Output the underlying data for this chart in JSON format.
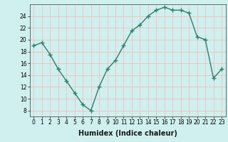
{
  "x": [
    0,
    1,
    2,
    3,
    4,
    5,
    6,
    7,
    8,
    9,
    10,
    11,
    12,
    13,
    14,
    15,
    16,
    17,
    18,
    19,
    20,
    21,
    22,
    23
  ],
  "y": [
    19,
    19.5,
    17.5,
    15,
    13,
    11,
    9,
    8,
    12,
    15,
    16.5,
    19,
    21.5,
    22.5,
    24,
    25,
    25.5,
    25,
    25,
    24.5,
    20.5,
    20,
    13.5,
    15
  ],
  "line_color": "#2e7d6e",
  "marker": "+",
  "marker_size": 4,
  "bg_color": "#cff0ee",
  "grid_color": "#f0c0c0",
  "xlabel": "Humidex (Indice chaleur)",
  "xlim": [
    -0.5,
    23.5
  ],
  "ylim": [
    7,
    26
  ],
  "yticks": [
    8,
    10,
    12,
    14,
    16,
    18,
    20,
    22,
    24
  ],
  "xtick_labels": [
    "0",
    "1",
    "2",
    "3",
    "4",
    "5",
    "6",
    "7",
    "8",
    "9",
    "10",
    "11",
    "12",
    "13",
    "14",
    "15",
    "16",
    "17",
    "18",
    "19",
    "20",
    "21",
    "22",
    "23"
  ],
  "tick_fontsize": 5.5,
  "xlabel_fontsize": 7,
  "line_width": 1.0
}
